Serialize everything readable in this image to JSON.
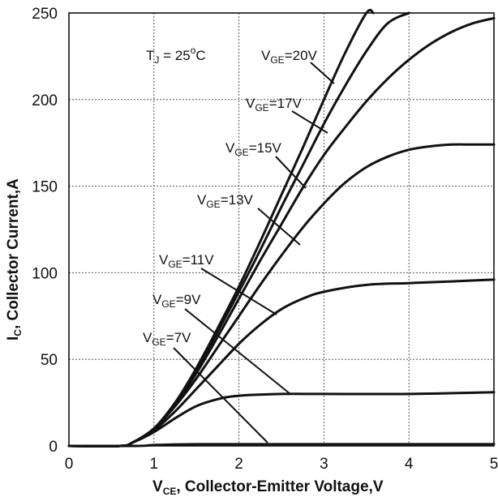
{
  "chart_data": {
    "type": "line",
    "xlabel_main": "V",
    "xlabel_sub": "CE",
    "xlabel_rest": ", Collector-Emitter Voltage,V",
    "ylabel_main": "I",
    "ylabel_sub": "C",
    "ylabel_rest": ", Collector Current,A",
    "xlim": [
      0,
      5
    ],
    "ylim": [
      0,
      250
    ],
    "x_ticks": [
      "0",
      "1",
      "2",
      "3",
      "4",
      "5"
    ],
    "y_ticks": [
      "0",
      "50",
      "100",
      "150",
      "200",
      "250"
    ],
    "grid": true,
    "annotation": {
      "main": "T",
      "sub": "J",
      "rest": " = 25",
      "sup": "o",
      "unit": "C"
    },
    "series": [
      {
        "label_main": "V",
        "label_sub": "GE",
        "label_rest": "=20V",
        "x": [
          0,
          0.6,
          0.75,
          1.0,
          1.25,
          1.5,
          1.75,
          2.0,
          2.25,
          2.5,
          2.75,
          3.0,
          3.25,
          3.5,
          3.58
        ],
        "y": [
          0,
          0,
          2,
          10,
          25,
          45,
          68,
          92,
          118,
          145,
          172,
          200,
          227,
          250,
          250
        ]
      },
      {
        "label_main": "V",
        "label_sub": "GE",
        "label_rest": "=17V",
        "x": [
          0,
          0.6,
          0.75,
          1.0,
          1.25,
          1.5,
          1.75,
          2.0,
          2.25,
          2.5,
          2.75,
          3.0,
          3.25,
          3.5,
          3.75,
          4.0
        ],
        "y": [
          0,
          0,
          2,
          10,
          25,
          44,
          66,
          89,
          113,
          138,
          162,
          186,
          208,
          228,
          244,
          250
        ]
      },
      {
        "label_main": "V",
        "label_sub": "GE",
        "label_rest": "=15V",
        "x": [
          0,
          0.6,
          0.75,
          1.0,
          1.25,
          1.5,
          1.75,
          2.0,
          2.25,
          2.5,
          2.75,
          3.0,
          3.25,
          3.5,
          3.75,
          4.0,
          4.25,
          4.5,
          4.75,
          5.0
        ],
        "y": [
          0,
          0,
          2,
          10,
          24,
          42,
          63,
          85,
          107,
          128,
          149,
          168,
          184,
          199,
          212,
          223,
          232,
          239,
          244,
          247
        ]
      },
      {
        "label_main": "V",
        "label_sub": "GE",
        "label_rest": "=13V",
        "x": [
          0,
          0.6,
          0.75,
          1.0,
          1.25,
          1.5,
          1.75,
          2.0,
          2.25,
          2.5,
          2.75,
          3.0,
          3.25,
          3.5,
          3.75,
          4.0,
          4.25,
          4.5,
          4.75,
          5.0
        ],
        "y": [
          0,
          0,
          2,
          10,
          23,
          39,
          57,
          75,
          93,
          110,
          126,
          140,
          152,
          161,
          167,
          171,
          173,
          174,
          174,
          174
        ]
      },
      {
        "label_main": "V",
        "label_sub": "GE",
        "label_rest": "=11V",
        "x": [
          0,
          0.6,
          0.75,
          1.0,
          1.25,
          1.5,
          1.75,
          2.0,
          2.25,
          2.5,
          2.75,
          3.0,
          3.5,
          4.0,
          4.5,
          5.0
        ],
        "y": [
          0,
          0,
          2,
          9,
          20,
          33,
          46,
          59,
          70,
          79,
          85,
          89,
          93,
          94,
          95,
          96
        ]
      },
      {
        "label_main": "V",
        "label_sub": "GE",
        "label_rest": "=9V",
        "x": [
          0,
          0.6,
          0.75,
          1.0,
          1.25,
          1.5,
          1.75,
          2.0,
          2.5,
          3.0,
          4.0,
          5.0
        ],
        "y": [
          0,
          0,
          2,
          8,
          16,
          23,
          27,
          29,
          30,
          30,
          30,
          31
        ]
      },
      {
        "label_main": "V",
        "label_sub": "GE",
        "label_rest": "=7V",
        "x": [
          0,
          0.8,
          1.0,
          1.5,
          2.0,
          3.0,
          4.0,
          5.0
        ],
        "y": [
          0,
          0,
          0.5,
          1,
          1,
          1,
          1,
          1
        ]
      }
    ]
  }
}
